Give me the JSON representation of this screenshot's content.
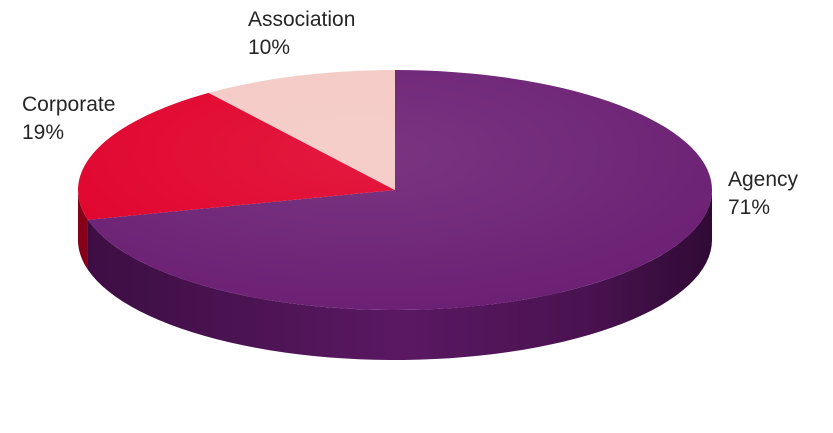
{
  "chart_data": {
    "type": "pie",
    "style": "3d",
    "title": "",
    "slices": [
      {
        "name": "Agency",
        "value": 71,
        "label": "71%",
        "color": "#6b1f73"
      },
      {
        "name": "Corporate",
        "value": 19,
        "label": "19%",
        "color": "#e0002a"
      },
      {
        "name": "Association",
        "value": 10,
        "label": "10%",
        "color": "#f4c9c4"
      }
    ],
    "legend": "none",
    "data_labels": "outside"
  }
}
